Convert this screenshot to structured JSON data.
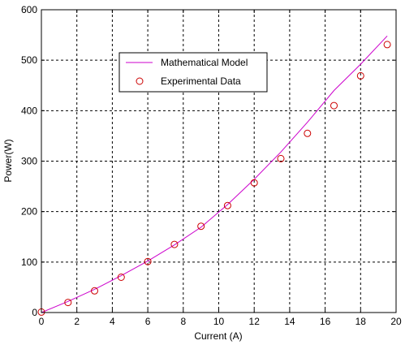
{
  "chart_data": {
    "type": "line",
    "title": "",
    "xlabel": "Current (A)",
    "ylabel": "Power(W)",
    "xlim": [
      0,
      20
    ],
    "ylim": [
      0,
      600
    ],
    "xticks": [
      0,
      2,
      4,
      6,
      8,
      10,
      12,
      14,
      16,
      18,
      20
    ],
    "yticks": [
      0,
      100,
      200,
      300,
      400,
      500,
      600
    ],
    "grid": true,
    "legend_position": "upper-left-center",
    "series": [
      {
        "name": "Mathematical Model",
        "kind": "line",
        "color": "#cc00cc",
        "x": [
          0,
          1.5,
          3,
          4.5,
          6,
          7.5,
          9,
          10.5,
          12,
          13.5,
          15,
          16.5,
          18,
          19.5
        ],
        "y": [
          0,
          22,
          46,
          73,
          102,
          134,
          169,
          214,
          264,
          318,
          377,
          440,
          492,
          548
        ]
      },
      {
        "name": "Experimental Data",
        "kind": "scatter",
        "color": "#cc0000",
        "x": [
          0,
          1.5,
          3,
          4.5,
          6,
          7.5,
          9,
          10.5,
          12,
          13.5,
          15,
          16.5,
          18,
          19.5
        ],
        "y": [
          1,
          20,
          43,
          70,
          101,
          135,
          171,
          212,
          257,
          305,
          355,
          410,
          469,
          531
        ]
      }
    ]
  }
}
